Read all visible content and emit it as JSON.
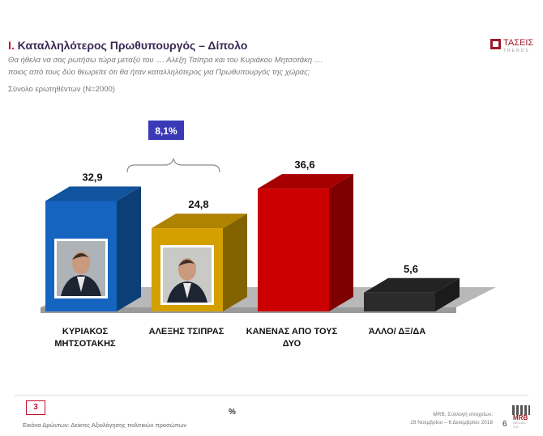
{
  "header": {
    "title_num": "I.",
    "title": "Καταλληλότερος Πρωθυπουργός – Δίπολο",
    "question_line1": "Θα ήθελα να σας ρωτήσω τώρα μεταξύ του .... Αλέξη Τσίπρα και του Κυριάκου Μητσοτάκη ....",
    "question_line2": "ποιος από τους δύο θεωρείτε ότι θα ήταν καταλληλότερος για Πρωθυπουργός της χώρας;",
    "base": "Σύνολο ερωτηθέντων (Ν=2000)"
  },
  "logo": {
    "word": "ΤΑΣΕΙΣ",
    "tag": "TRENDS"
  },
  "chart_data": {
    "type": "bar",
    "categories": [
      "ΚΥΡΙΑΚΟΣ\nΜΗΤΣΟΤΑΚΗΣ",
      "ΑΛΕΞΗΣ ΤΣΙΠΡΑΣ",
      "ΚΑΝΕΝΑΣ ΑΠΟ ΤΟΥΣ\nΔΥΟ",
      "ΆΛΛΟ/ ΔΞ/ΔΑ"
    ],
    "values": [
      32.9,
      24.8,
      36.6,
      5.6
    ],
    "value_labels": [
      "32,9",
      "24,8",
      "36,6",
      "5,6"
    ],
    "colors": [
      "#1565c0",
      "#d4a000",
      "#cc0000",
      "#2b2b2b"
    ],
    "difference_label": "8,1%",
    "difference_color": "#3a3ab8",
    "unit": "%",
    "ylim": [
      0,
      40
    ]
  },
  "footer": {
    "page_box": "3",
    "pct_sign": "%",
    "left_text": "Εικόνα Δρώντων: Δείκτες Αξιολόγησης πολιτικών προσώπων",
    "source_line1": "MRB, Συλλογή στοιχείων:",
    "source_line2": "28 Νοεμβρίου – 6 Δεκεμβρίου 2018",
    "page_no": "6",
    "mrb_text": "MRB",
    "mrb_sub": "HELLAS S.A."
  }
}
